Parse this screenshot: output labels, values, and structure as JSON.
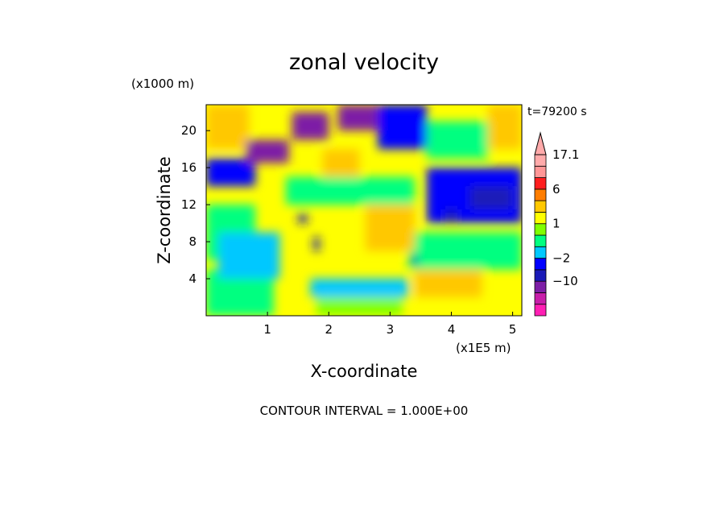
{
  "chart_data": {
    "type": "heatmap",
    "title": "zonal velocity",
    "xlabel": "X-coordinate",
    "ylabel": "Z-coordinate",
    "x_unit_label": "(x1E5 m)",
    "y_unit_label": "(x1000 m)",
    "time_label": "t=79200 s",
    "footer": "CONTOUR INTERVAL = 1.000E+00",
    "xlim": [
      0,
      5.15
    ],
    "ylim": [
      0,
      22.8
    ],
    "x_ticks": [
      1,
      2,
      3,
      4,
      5
    ],
    "y_ticks": [
      4,
      8,
      12,
      16,
      20
    ],
    "x_tick_labels": [
      "1",
      "2",
      "3",
      "4",
      "5"
    ],
    "y_tick_labels": [
      "4",
      "8",
      "12",
      "16",
      "20"
    ],
    "colorbar": {
      "levels": [
        -20,
        -15,
        -10,
        -6,
        -2,
        -1,
        0,
        1,
        2,
        3,
        6,
        10,
        13,
        17.1
      ],
      "labeled_levels": [
        17.1,
        6,
        1,
        -2,
        -10
      ],
      "labels": [
        "17.1",
        "6",
        "1",
        "−2",
        "−10"
      ],
      "colors": [
        "#ff1fb4",
        "#c81eaa",
        "#7d1ea6",
        "#1a1ab8",
        "#0000ff",
        "#00c8ff",
        "#00ff80",
        "#80ff00",
        "#ffff00",
        "#ffc800",
        "#ff7d00",
        "#ff1e1e",
        "#ff9696",
        "#ffaaaa"
      ]
    },
    "regions": [
      {
        "value": 2.5,
        "x": [
          0,
          5.15
        ],
        "z": [
          0,
          22.8
        ]
      },
      {
        "value": 0.5,
        "x": [
          0,
          1.1
        ],
        "z": [
          0,
          5
        ]
      },
      {
        "value": 1.5,
        "x": [
          1.8,
          3.2
        ],
        "z": [
          0,
          2
        ]
      },
      {
        "value": -0.5,
        "x": [
          1.7,
          3.3
        ],
        "z": [
          2,
          4
        ]
      },
      {
        "value": 0.5,
        "x": [
          3.3,
          5.15
        ],
        "z": [
          5,
          9
        ]
      },
      {
        "value": 4,
        "x": [
          3.4,
          4.5
        ],
        "z": [
          2,
          5
        ]
      },
      {
        "value": 0.5,
        "x": [
          0,
          0.8
        ],
        "z": [
          6,
          12
        ]
      },
      {
        "value": -0.5,
        "x": [
          0.2,
          1.2
        ],
        "z": [
          4,
          9
        ]
      },
      {
        "value": 3.5,
        "x": [
          2.6,
          3.4
        ],
        "z": [
          7,
          12
        ]
      },
      {
        "value": -1.5,
        "x": [
          3.6,
          5.15
        ],
        "z": [
          10,
          16
        ]
      },
      {
        "value": -5,
        "x": [
          4.3,
          5
        ],
        "z": [
          11.5,
          14
        ]
      },
      {
        "value": -4,
        "x": [
          3.9,
          4.1
        ],
        "z": [
          10,
          11.5
        ]
      },
      {
        "value": 0.5,
        "x": [
          1.3,
          3.4
        ],
        "z": [
          12,
          15
        ]
      },
      {
        "value": -1.5,
        "x": [
          0,
          0.8
        ],
        "z": [
          14,
          17
        ]
      },
      {
        "value": 5,
        "x": [
          0,
          0.7
        ],
        "z": [
          18,
          22.8
        ]
      },
      {
        "value": -8,
        "x": [
          0.65,
          1.35
        ],
        "z": [
          16.5,
          19
        ]
      },
      {
        "value": 4.5,
        "x": [
          1.9,
          2.5
        ],
        "z": [
          15,
          18
        ]
      },
      {
        "value": -8,
        "x": [
          1.4,
          2
        ],
        "z": [
          19,
          22
        ]
      },
      {
        "value": -8,
        "x": [
          2.15,
          2.8
        ],
        "z": [
          20,
          22.8
        ]
      },
      {
        "value": -1.5,
        "x": [
          2.8,
          3.6
        ],
        "z": [
          18,
          22.8
        ]
      },
      {
        "value": 0.5,
        "x": [
          3.6,
          4.6
        ],
        "z": [
          17,
          21
        ]
      },
      {
        "value": 4.5,
        "x": [
          4.6,
          5.15
        ],
        "z": [
          18,
          22.8
        ]
      },
      {
        "value": -5,
        "x": [
          1.5,
          1.65
        ],
        "z": [
          10,
          11
        ]
      },
      {
        "value": -5,
        "x": [
          1.75,
          1.85
        ],
        "z": [
          7,
          8.5
        ]
      },
      {
        "value": -5,
        "x": [
          3.35,
          3.45
        ],
        "z": [
          5.5,
          6.5
        ]
      }
    ]
  }
}
